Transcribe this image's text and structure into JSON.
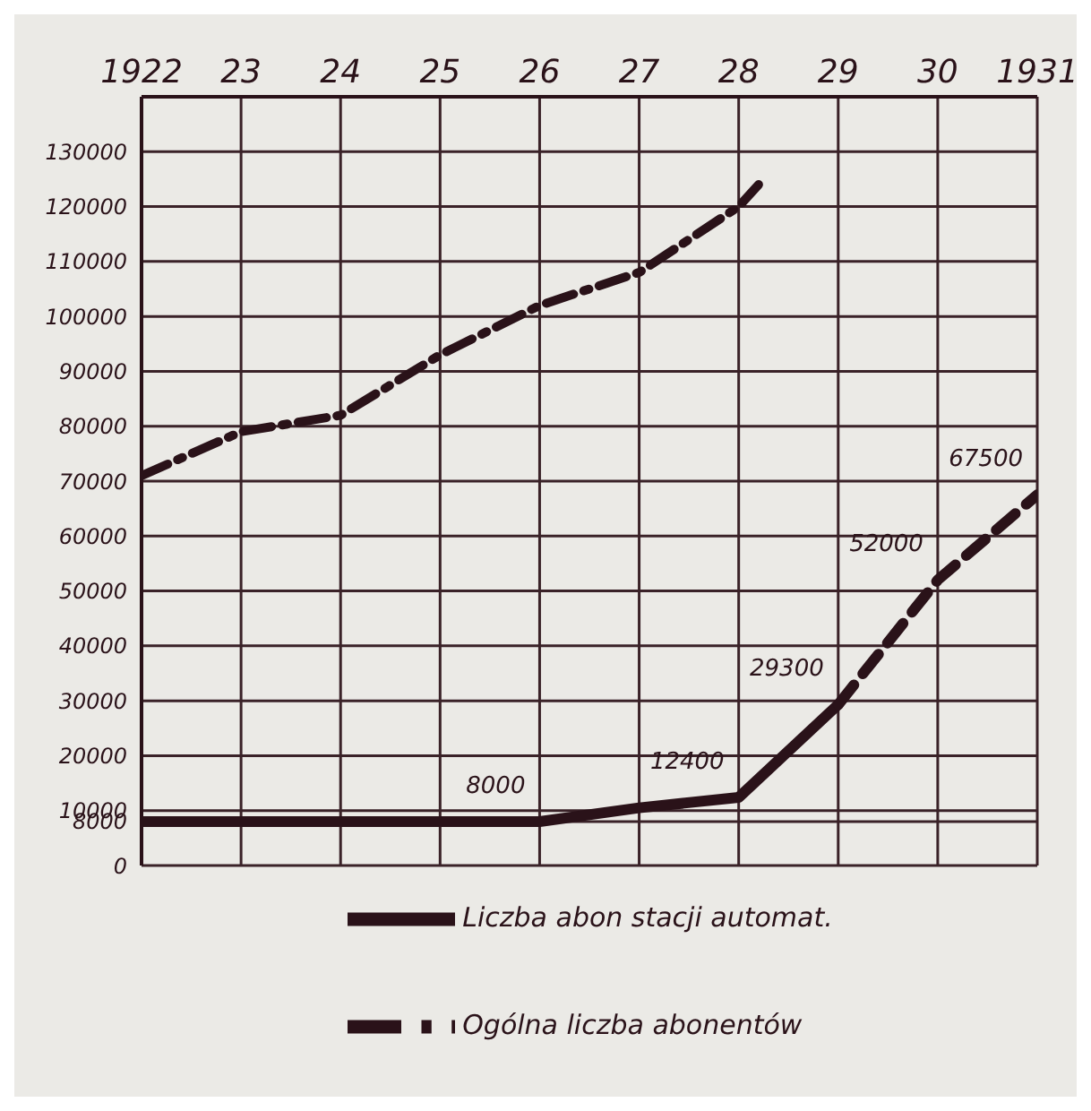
{
  "chart_data": {
    "type": "line",
    "xlim": [
      1922,
      1931
    ],
    "xticks": [
      {
        "value": 1922,
        "label": "1922"
      },
      {
        "value": 1923,
        "label": "23"
      },
      {
        "value": 1924,
        "label": "24"
      },
      {
        "value": 1925,
        "label": "25"
      },
      {
        "value": 1926,
        "label": "26"
      },
      {
        "value": 1927,
        "label": "27"
      },
      {
        "value": 1928,
        "label": "28"
      },
      {
        "value": 1929,
        "label": "29"
      },
      {
        "value": 1930,
        "label": "30"
      },
      {
        "value": 1931,
        "label": "1931"
      }
    ],
    "ylim": [
      0,
      140000
    ],
    "yticks": [
      0,
      8000,
      10000,
      20000,
      30000,
      40000,
      50000,
      60000,
      70000,
      80000,
      90000,
      100000,
      110000,
      120000,
      130000
    ],
    "grid": true,
    "legend": "bottom",
    "marker": "none",
    "series": [
      {
        "name": "Ogólna liczba abonentów",
        "color": "#2a1219",
        "line_style": "dashdot",
        "x": [
          1922,
          1923,
          1924,
          1925,
          1926,
          1927,
          1928,
          1928.2
        ],
        "values": [
          71000,
          79000,
          82000,
          93000,
          102000,
          108000,
          120000,
          124000
        ]
      },
      {
        "name": "Liczba abon stacji automat.",
        "color": "#2a1219",
        "line_style": "solid",
        "x": [
          1922,
          1923,
          1924,
          1925,
          1926,
          1927,
          1928,
          1929
        ],
        "values": [
          8000,
          8000,
          8000,
          8000,
          8000,
          10500,
          12400,
          29300
        ],
        "value_labels": [
          null,
          null,
          null,
          null,
          "8000",
          null,
          "12400",
          "29300"
        ]
      },
      {
        "color": "#2a1219",
        "line_style": "dashed",
        "x": [
          1929,
          1930,
          1931
        ],
        "values": [
          29300,
          52000,
          67500
        ],
        "value_labels": [
          null,
          "52000",
          "67500"
        ]
      }
    ]
  }
}
